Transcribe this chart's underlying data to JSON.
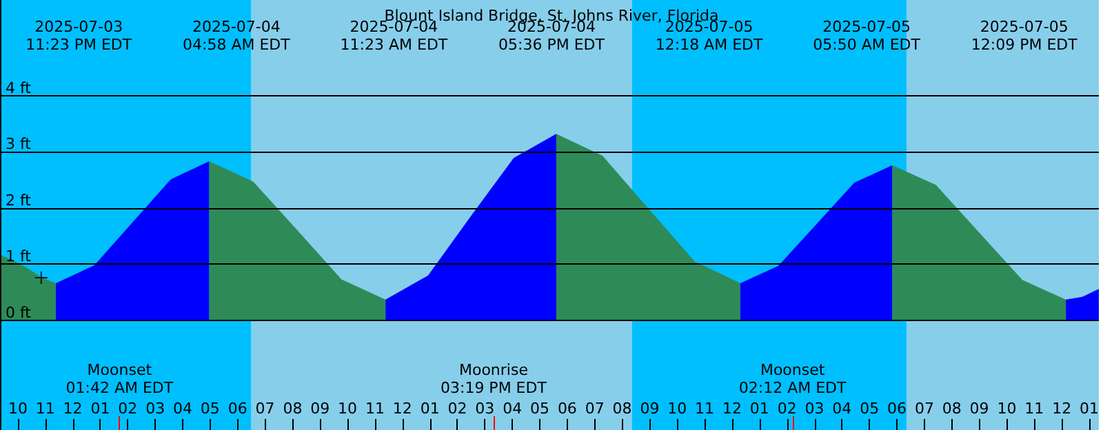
{
  "chart_data": {
    "type": "area",
    "title": "Blount Island Bridge, St. Johns River, Florida",
    "xlim": [
      "2025-07-03T21:21",
      "2025-07-05T13:21"
    ],
    "xticks": [
      {
        "value": "2025-07-03T22:00",
        "label": "10"
      },
      {
        "value": "2025-07-03T23:00",
        "label": "11"
      },
      {
        "value": "2025-07-04T00:00",
        "label": "12"
      },
      {
        "value": "2025-07-04T01:00",
        "label": "01"
      },
      {
        "value": "2025-07-04T02:00",
        "label": "02"
      },
      {
        "value": "2025-07-04T03:00",
        "label": "03"
      },
      {
        "value": "2025-07-04T04:00",
        "label": "04"
      },
      {
        "value": "2025-07-04T05:00",
        "label": "05"
      },
      {
        "value": "2025-07-04T06:00",
        "label": "06"
      },
      {
        "value": "2025-07-04T07:00",
        "label": "07"
      },
      {
        "value": "2025-07-04T08:00",
        "label": "08"
      },
      {
        "value": "2025-07-04T09:00",
        "label": "09"
      },
      {
        "value": "2025-07-04T10:00",
        "label": "10"
      },
      {
        "value": "2025-07-04T11:00",
        "label": "11"
      },
      {
        "value": "2025-07-04T12:00",
        "label": "12"
      },
      {
        "value": "2025-07-04T13:00",
        "label": "01"
      },
      {
        "value": "2025-07-04T14:00",
        "label": "02"
      },
      {
        "value": "2025-07-04T15:00",
        "label": "03"
      },
      {
        "value": "2025-07-04T16:00",
        "label": "04"
      },
      {
        "value": "2025-07-04T17:00",
        "label": "05"
      },
      {
        "value": "2025-07-04T18:00",
        "label": "06"
      },
      {
        "value": "2025-07-04T19:00",
        "label": "07"
      },
      {
        "value": "2025-07-04T20:00",
        "label": "08"
      },
      {
        "value": "2025-07-04T21:00",
        "label": "09"
      },
      {
        "value": "2025-07-04T22:00",
        "label": "10"
      },
      {
        "value": "2025-07-04T23:00",
        "label": "11"
      },
      {
        "value": "2025-07-05T00:00",
        "label": "12"
      },
      {
        "value": "2025-07-05T01:00",
        "label": "01"
      },
      {
        "value": "2025-07-05T02:00",
        "label": "02"
      },
      {
        "value": "2025-07-05T03:00",
        "label": "03"
      },
      {
        "value": "2025-07-05T04:00",
        "label": "04"
      },
      {
        "value": "2025-07-05T05:00",
        "label": "05"
      },
      {
        "value": "2025-07-05T06:00",
        "label": "06"
      },
      {
        "value": "2025-07-05T07:00",
        "label": "07"
      },
      {
        "value": "2025-07-05T08:00",
        "label": "08"
      },
      {
        "value": "2025-07-05T09:00",
        "label": "09"
      },
      {
        "value": "2025-07-05T10:00",
        "label": "10"
      },
      {
        "value": "2025-07-05T11:00",
        "label": "11"
      },
      {
        "value": "2025-07-05T12:00",
        "label": "12"
      },
      {
        "value": "2025-07-05T13:00",
        "label": "01"
      }
    ],
    "ylim": [
      -1.95,
      5.7
    ],
    "yticks": [
      {
        "value": 0,
        "label": "0 ft"
      },
      {
        "value": 1,
        "label": "1 ft"
      },
      {
        "value": 2,
        "label": "2 ft"
      },
      {
        "value": 3,
        "label": "3 ft"
      },
      {
        "value": 4,
        "label": "4 ft"
      }
    ],
    "grid": "y",
    "bands": [
      {
        "axis": "x",
        "from": "2025-07-03T21:21",
        "to": "2025-07-04T06:30",
        "color": "#00bfff"
      },
      {
        "axis": "x",
        "from": "2025-07-04T06:30",
        "to": "2025-07-04T20:21",
        "color": "#87ceeb"
      },
      {
        "axis": "x",
        "from": "2025-07-04T20:21",
        "to": "2025-07-05T06:21",
        "color": "#00bfff"
      },
      {
        "axis": "x",
        "from": "2025-07-05T06:21",
        "to": "2025-07-05T13:21",
        "color": "#87ceeb"
      }
    ],
    "ref_lines": [
      {
        "axis": "x",
        "value": "2025-07-04T01:42",
        "label": "Moonset\n01:42 AM EDT",
        "color": "#ff0000"
      },
      {
        "axis": "x",
        "value": "2025-07-04T15:19",
        "label": "Moonrise\n03:19 PM EDT",
        "color": "#ff0000"
      },
      {
        "axis": "x",
        "value": "2025-07-05T02:12",
        "label": "Moonset\n02:12 AM EDT",
        "color": "#ff0000"
      }
    ],
    "series": [
      {
        "color": "#2e8b57",
        "x": [
          "2025-07-03T21:21",
          "2025-07-03T21:51",
          "2025-07-03T22:21",
          "2025-07-03T22:51",
          "2025-07-03T23:23"
        ],
        "values": [
          1.17,
          1.06,
          0.93,
          0.77,
          0.66
        ]
      },
      {
        "color": "#0000ff",
        "x": [
          "2025-07-03T23:23",
          "2025-07-04T00:47",
          "2025-07-04T02:11",
          "2025-07-04T03:34",
          "2025-07-04T04:58"
        ],
        "values": [
          0.66,
          0.98,
          1.75,
          2.51,
          2.83
        ]
      },
      {
        "color": "#2e8b57",
        "x": [
          "2025-07-04T04:58",
          "2025-07-04T06:34",
          "2025-07-04T08:11",
          "2025-07-04T09:47",
          "2025-07-04T11:23"
        ],
        "values": [
          2.83,
          2.47,
          1.6,
          0.73,
          0.37
        ]
      },
      {
        "color": "#0000ff",
        "x": [
          "2025-07-04T11:23",
          "2025-07-04T12:56",
          "2025-07-04T14:29",
          "2025-07-04T16:03",
          "2025-07-04T17:36"
        ],
        "values": [
          0.37,
          0.8,
          1.85,
          2.89,
          3.32
        ]
      },
      {
        "color": "#2e8b57",
        "x": [
          "2025-07-04T17:36",
          "2025-07-04T19:17",
          "2025-07-04T20:57",
          "2025-07-04T22:38",
          "2025-07-05T00:18"
        ],
        "values": [
          3.32,
          2.93,
          1.99,
          1.05,
          0.66
        ]
      },
      {
        "color": "#0000ff",
        "x": [
          "2025-07-05T00:18",
          "2025-07-05T01:41",
          "2025-07-05T03:04",
          "2025-07-05T04:27",
          "2025-07-05T05:50"
        ],
        "values": [
          0.66,
          0.97,
          1.71,
          2.45,
          2.76
        ]
      },
      {
        "color": "#2e8b57",
        "x": [
          "2025-07-05T05:50",
          "2025-07-05T07:25",
          "2025-07-05T08:59",
          "2025-07-05T10:34",
          "2025-07-05T12:09"
        ],
        "values": [
          2.76,
          2.41,
          1.57,
          0.72,
          0.37
        ]
      },
      {
        "color": "#0000ff",
        "x": [
          "2025-07-05T12:09",
          "2025-07-05T12:45",
          "2025-07-05T13:21"
        ],
        "values": [
          0.37,
          0.42,
          0.56
        ]
      },
      {
        "type": "scatter",
        "marker": "cross",
        "color": "#000000",
        "x": [
          "2025-07-03T22:51"
        ],
        "values": [
          0.76
        ]
      }
    ],
    "annotations": [
      "2025-07-03\n11:23 PM EDT",
      "2025-07-04\n04:58 AM EDT",
      "2025-07-04\n11:23 AM EDT",
      "2025-07-04\n05:36 PM EDT",
      "2025-07-05\n12:18 AM EDT",
      "2025-07-05\n05:50 AM EDT",
      "2025-07-05\n12:09 PM EDT"
    ]
  }
}
